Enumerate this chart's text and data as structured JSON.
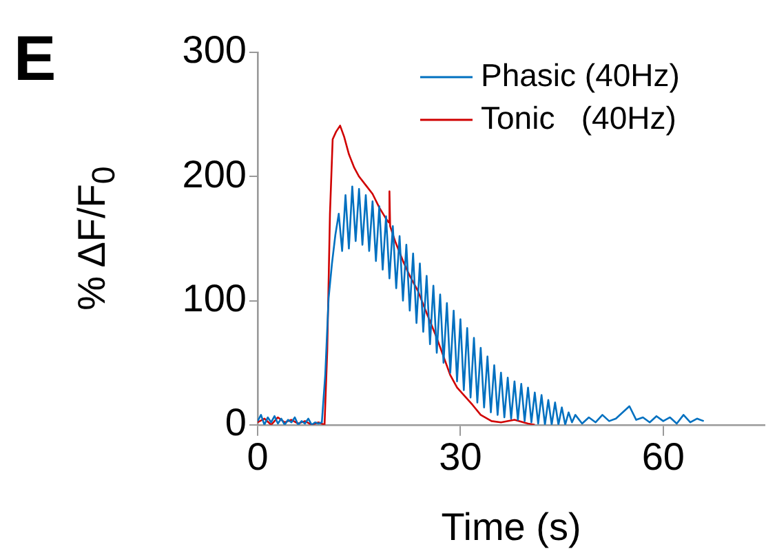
{
  "chart_data": {
    "type": "line",
    "xlabel": "Time (s)",
    "ylabel": "% ΔF/F$_{0}$",
    "annotations": [
      "E"
    ],
    "xlim": [
      0,
      75
    ],
    "xticks": [
      0,
      30,
      60
    ],
    "ylim": [
      0,
      300
    ],
    "yticks": [
      0,
      100,
      200,
      300
    ],
    "grid": false,
    "legend": "top right",
    "marker": "none",
    "line_style": "solid",
    "series": [
      {
        "name": "Phasic (40Hz)",
        "color": "#0070c0",
        "x": [
          0,
          0.5,
          1,
          1.5,
          2,
          2.5,
          3,
          3.5,
          4,
          4.5,
          5,
          5.5,
          6,
          6.5,
          7,
          7.5,
          8,
          8.5,
          9,
          9.5,
          10,
          10.5,
          11,
          11.5,
          12,
          12.5,
          13,
          13.5,
          14,
          14.5,
          15,
          15.5,
          16,
          16.5,
          17,
          17.5,
          18,
          18.5,
          19,
          19.5,
          20,
          20.5,
          21,
          21.5,
          22,
          22.5,
          23,
          23.5,
          24,
          24.5,
          25,
          25.5,
          26,
          26.5,
          27,
          27.5,
          28,
          28.5,
          29,
          29.5,
          30,
          30.5,
          31,
          31.5,
          32,
          32.5,
          33,
          33.5,
          34,
          34.5,
          35,
          35.5,
          36,
          36.5,
          37,
          37.5,
          38,
          38.5,
          39,
          39.5,
          40,
          40.5,
          41,
          41.5,
          42,
          42.5,
          43,
          43.5,
          44,
          44.5,
          45,
          45.5,
          46,
          46.5,
          47,
          48,
          49,
          50,
          51,
          52,
          53,
          54,
          55,
          56,
          57,
          58,
          59,
          60,
          61,
          62,
          63,
          64,
          65,
          66
        ],
        "values": [
          3,
          8,
          0,
          6,
          2,
          7,
          1,
          5,
          0,
          4,
          2,
          6,
          0,
          3,
          1,
          5,
          0,
          2,
          1,
          2,
          40,
          102,
          130,
          153,
          170,
          140,
          185,
          142,
          192,
          148,
          190,
          145,
          185,
          140,
          180,
          132,
          176,
          125,
          168,
          118,
          160,
          110,
          152,
          100,
          145,
          92,
          138,
          82,
          130,
          75,
          120,
          65,
          112,
          58,
          105,
          50,
          98,
          42,
          92,
          35,
          85,
          28,
          78,
          22,
          70,
          18,
          62,
          14,
          55,
          10,
          48,
          8,
          42,
          6,
          38,
          5,
          35,
          4,
          33,
          3,
          30,
          2,
          26,
          1,
          24,
          0,
          20,
          0,
          18,
          0,
          14,
          0,
          10,
          2,
          8,
          1,
          6,
          2,
          8,
          3,
          5,
          10,
          15,
          4,
          6,
          2,
          7,
          3,
          6,
          1,
          8,
          2,
          5,
          3
        ]
      },
      {
        "name": "Tonic   (40Hz)",
        "color": "#d00000",
        "x": [
          0,
          1,
          2,
          3,
          4,
          5,
          6,
          7,
          8,
          9,
          9.9,
          10.3,
          10.7,
          11.1,
          11.6,
          12.2,
          12.8,
          13.5,
          14.3,
          15,
          16,
          17,
          18,
          19,
          19.4,
          19.5,
          19.6,
          20.4,
          21.5,
          22.5,
          23.7,
          25,
          26.5,
          27.5,
          28.5,
          29.5,
          30.5,
          31.8,
          33,
          34.6,
          36,
          38,
          40,
          41
        ],
        "values": [
          2,
          5,
          0,
          6,
          2,
          4,
          1,
          3,
          0,
          2,
          0,
          60,
          170,
          230,
          236,
          241,
          232,
          218,
          207,
          200,
          193,
          186,
          175,
          166,
          163,
          188,
          160,
          147,
          132,
          120,
          108,
          90,
          70,
          55,
          40,
          30,
          24,
          16,
          8,
          3,
          2,
          4,
          1,
          0
        ]
      }
    ]
  }
}
